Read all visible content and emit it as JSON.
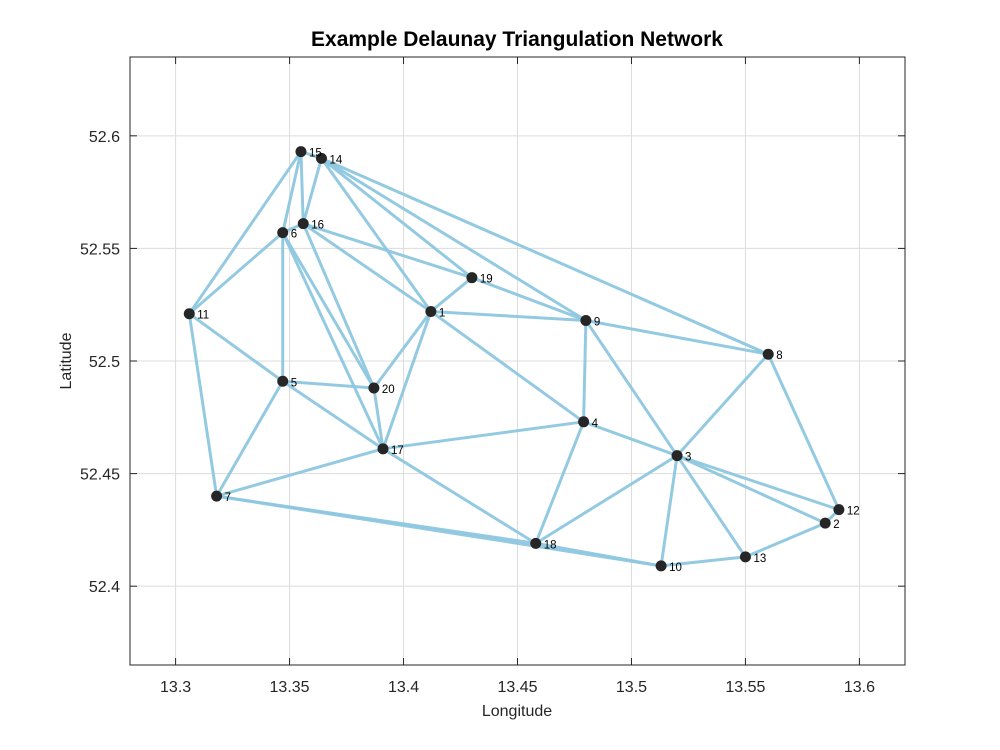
{
  "chart_data": {
    "type": "scatter",
    "title": "Example Delaunay Triangulation Network",
    "xlabel": "Longitude",
    "ylabel": "Latitude",
    "xlim": [
      13.28,
      13.62
    ],
    "ylim": [
      52.365,
      52.635
    ],
    "xticks": [
      13.3,
      13.35,
      13.4,
      13.45,
      13.5,
      13.55,
      13.6
    ],
    "xtick_labels": [
      "13.3",
      "13.35",
      "13.4",
      "13.45",
      "13.5",
      "13.55",
      "13.6"
    ],
    "yticks": [
      52.4,
      52.45,
      52.5,
      52.55,
      52.6
    ],
    "ytick_labels": [
      "52.4",
      "52.45",
      "52.5",
      "52.55",
      "52.6"
    ],
    "grid": true,
    "colors": {
      "edge": "#8EC8E0",
      "node": "#262626",
      "grid": "#DCDCDC",
      "axis": "#262626"
    },
    "nodes": [
      {
        "id": 1,
        "label": "1",
        "lon": 13.412,
        "lat": 52.522
      },
      {
        "id": 2,
        "label": "2",
        "lon": 13.585,
        "lat": 52.428
      },
      {
        "id": 3,
        "label": "3",
        "lon": 13.52,
        "lat": 52.458
      },
      {
        "id": 4,
        "label": "4",
        "lon": 13.479,
        "lat": 52.473
      },
      {
        "id": 5,
        "label": "5",
        "lon": 13.347,
        "lat": 52.491
      },
      {
        "id": 6,
        "label": "6",
        "lon": 13.347,
        "lat": 52.557
      },
      {
        "id": 7,
        "label": "7",
        "lon": 13.318,
        "lat": 52.44
      },
      {
        "id": 8,
        "label": "8",
        "lon": 13.56,
        "lat": 52.503
      },
      {
        "id": 9,
        "label": "9",
        "lon": 13.48,
        "lat": 52.518
      },
      {
        "id": 10,
        "label": "10",
        "lon": 13.513,
        "lat": 52.409
      },
      {
        "id": 11,
        "label": "11",
        "lon": 13.306,
        "lat": 52.521
      },
      {
        "id": 12,
        "label": "12",
        "lon": 13.591,
        "lat": 52.434
      },
      {
        "id": 13,
        "label": "13",
        "lon": 13.55,
        "lat": 52.413
      },
      {
        "id": 14,
        "label": "14",
        "lon": 13.364,
        "lat": 52.59
      },
      {
        "id": 15,
        "label": "15",
        "lon": 13.355,
        "lat": 52.593
      },
      {
        "id": 16,
        "label": "16",
        "lon": 13.356,
        "lat": 52.561
      },
      {
        "id": 17,
        "label": "17",
        "lon": 13.391,
        "lat": 52.461
      },
      {
        "id": 18,
        "label": "18",
        "lon": 13.458,
        "lat": 52.419
      },
      {
        "id": 19,
        "label": "19",
        "lon": 13.43,
        "lat": 52.537
      },
      {
        "id": 20,
        "label": "20",
        "lon": 13.387,
        "lat": 52.488
      }
    ],
    "edges": [
      [
        15,
        14
      ],
      [
        15,
        16
      ],
      [
        15,
        6
      ],
      [
        15,
        11
      ],
      [
        14,
        16
      ],
      [
        14,
        19
      ],
      [
        14,
        9
      ],
      [
        14,
        8
      ],
      [
        14,
        1
      ],
      [
        16,
        6
      ],
      [
        16,
        19
      ],
      [
        16,
        1
      ],
      [
        16,
        20
      ],
      [
        6,
        11
      ],
      [
        6,
        5
      ],
      [
        6,
        20
      ],
      [
        6,
        17
      ],
      [
        11,
        5
      ],
      [
        11,
        7
      ],
      [
        19,
        1
      ],
      [
        19,
        9
      ],
      [
        1,
        9
      ],
      [
        1,
        20
      ],
      [
        1,
        17
      ],
      [
        1,
        4
      ],
      [
        9,
        8
      ],
      [
        9,
        4
      ],
      [
        9,
        3
      ],
      [
        5,
        20
      ],
      [
        5,
        17
      ],
      [
        5,
        7
      ],
      [
        20,
        17
      ],
      [
        17,
        4
      ],
      [
        17,
        7
      ],
      [
        17,
        18
      ],
      [
        7,
        18
      ],
      [
        7,
        10
      ],
      [
        4,
        3
      ],
      [
        4,
        18
      ],
      [
        3,
        8
      ],
      [
        3,
        18
      ],
      [
        3,
        10
      ],
      [
        3,
        13
      ],
      [
        3,
        2
      ],
      [
        3,
        12
      ],
      [
        8,
        12
      ],
      [
        18,
        10
      ],
      [
        10,
        13
      ],
      [
        13,
        2
      ],
      [
        2,
        12
      ]
    ]
  }
}
